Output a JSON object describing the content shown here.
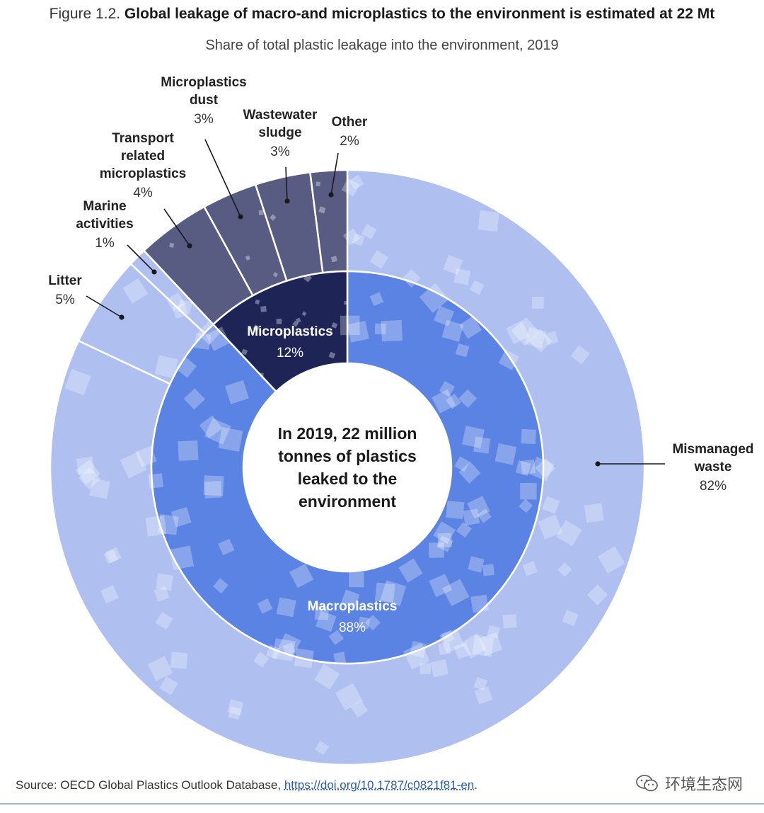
{
  "figure": {
    "title_prefix": "Figure 1.2.",
    "title_main": "Global leakage of macro-and microplastics to the environment is estimated at 22 Mt",
    "subtitle": "Share of total plastic leakage into the environment, 2019",
    "center_lines": [
      "In 2019, 22 million",
      "tonnes of plastics",
      "leaked to the",
      "environment"
    ],
    "source_prefix": "Source: OECD Global Plastics Outlook Database, ",
    "source_link": "https://doi.org/10.1787/c0821f81-en",
    "source_suffix": ".",
    "watermark": "环境生态网"
  },
  "chart_data": {
    "type": "pie",
    "title": "Global leakage of macro-and microplastics to the environment is estimated at 22 Mt",
    "subtitle": "Share of total plastic leakage into the environment, 2019",
    "inner_ring": [
      {
        "label": "Macroplastics",
        "value": 88,
        "display": "88%",
        "color": "#5b83e3"
      },
      {
        "label": "Microplastics",
        "value": 12,
        "display": "12%",
        "color": "#1e2456"
      }
    ],
    "outer_ring": [
      {
        "label": "Mismanaged waste",
        "lines": [
          "Mismanaged",
          "waste"
        ],
        "value": 82,
        "display": "82%",
        "parent": "Macroplastics",
        "color": "#aebff0"
      },
      {
        "label": "Litter",
        "lines": [
          "Litter"
        ],
        "value": 5,
        "display": "5%",
        "parent": "Macroplastics",
        "color": "#aebff0"
      },
      {
        "label": "Marine activities",
        "lines": [
          "Marine",
          "activities"
        ],
        "value": 1,
        "display": "1%",
        "parent": "Macroplastics",
        "color": "#aebff0"
      },
      {
        "label": "Transport related microplastics",
        "lines": [
          "Transport",
          "related",
          "microplastics"
        ],
        "value": 4,
        "display": "4%",
        "parent": "Microplastics",
        "color": "#585c82"
      },
      {
        "label": "Microplastics dust",
        "lines": [
          "Microplastics",
          "dust"
        ],
        "value": 3,
        "display": "3%",
        "parent": "Microplastics",
        "color": "#585c82"
      },
      {
        "label": "Wastewater sludge",
        "lines": [
          "Wastewater",
          "sludge"
        ],
        "value": 3,
        "display": "3%",
        "parent": "Microplastics",
        "color": "#585c82"
      },
      {
        "label": "Other",
        "lines": [
          "Other"
        ],
        "value": 2,
        "display": "2%",
        "parent": "Microplastics",
        "color": "#585c82"
      }
    ],
    "legend": "none"
  }
}
